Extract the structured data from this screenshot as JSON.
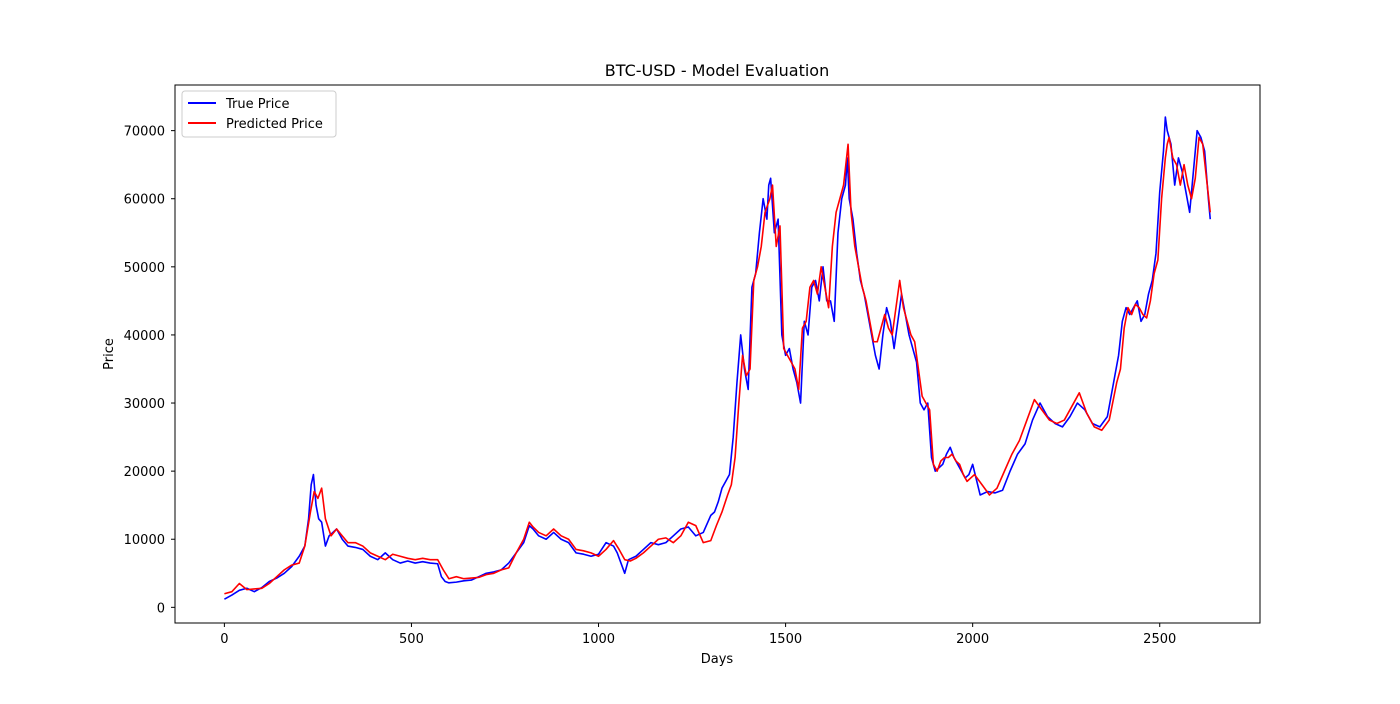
{
  "chart_data": {
    "type": "line",
    "title": "BTC-USD - Model Evaluation",
    "xlabel": "Days",
    "ylabel": "Price",
    "xlim": [
      -132,
      2768
    ],
    "ylim": [
      -2300,
      76700
    ],
    "x_ticks": [
      0,
      500,
      1000,
      1500,
      2000,
      2500
    ],
    "y_ticks": [
      0,
      10000,
      20000,
      30000,
      40000,
      50000,
      60000,
      70000
    ],
    "grid": false,
    "legend_position": "top-left",
    "series": [
      {
        "name": "True Price",
        "color": "#0000ff",
        "x": [
          0,
          20,
          40,
          60,
          80,
          100,
          120,
          140,
          160,
          180,
          200,
          215,
          225,
          232,
          238,
          245,
          252,
          260,
          270,
          280,
          290,
          300,
          315,
          330,
          350,
          370,
          390,
          410,
          430,
          450,
          470,
          490,
          510,
          530,
          550,
          570,
          580,
          590,
          600,
          620,
          640,
          660,
          680,
          700,
          720,
          740,
          760,
          780,
          800,
          815,
          825,
          840,
          860,
          880,
          900,
          920,
          940,
          960,
          980,
          1000,
          1020,
          1040,
          1050,
          1060,
          1070,
          1080,
          1100,
          1120,
          1140,
          1160,
          1180,
          1200,
          1220,
          1240,
          1260,
          1280,
          1300,
          1310,
          1320,
          1330,
          1340,
          1350,
          1360,
          1370,
          1380,
          1390,
          1400,
          1410,
          1420,
          1430,
          1440,
          1450,
          1455,
          1460,
          1470,
          1480,
          1490,
          1500,
          1510,
          1520,
          1530,
          1540,
          1550,
          1560,
          1570,
          1580,
          1590,
          1600,
          1610,
          1620,
          1630,
          1640,
          1650,
          1660,
          1665,
          1670,
          1680,
          1690,
          1700,
          1710,
          1720,
          1730,
          1740,
          1750,
          1760,
          1770,
          1780,
          1790,
          1800,
          1810,
          1820,
          1830,
          1840,
          1850,
          1860,
          1870,
          1880,
          1890,
          1900,
          1910,
          1920,
          1930,
          1940,
          1950,
          1960,
          1970,
          1980,
          1990,
          2000,
          2020,
          2040,
          2060,
          2080,
          2100,
          2120,
          2140,
          2160,
          2180,
          2200,
          2220,
          2240,
          2260,
          2280,
          2300,
          2320,
          2340,
          2360,
          2380,
          2390,
          2400,
          2410,
          2420,
          2430,
          2440,
          2450,
          2460,
          2470,
          2480,
          2490,
          2500,
          2510,
          2515,
          2520,
          2530,
          2540,
          2550,
          2560,
          2570,
          2580,
          2590,
          2600,
          2610,
          2620,
          2630,
          2635
        ],
        "values": [
          1200,
          1800,
          2500,
          2800,
          2300,
          2900,
          3800,
          4300,
          5000,
          6000,
          7500,
          9000,
          13000,
          18000,
          19500,
          15000,
          13000,
          12500,
          9000,
          10500,
          11000,
          11500,
          10000,
          9000,
          8800,
          8500,
          7500,
          7000,
          8000,
          7000,
          6500,
          6800,
          6500,
          6700,
          6500,
          6400,
          4500,
          3800,
          3600,
          3700,
          3900,
          4000,
          4500,
          5000,
          5200,
          5500,
          6500,
          8000,
          9500,
          12000,
          11500,
          10500,
          10000,
          11000,
          10000,
          9500,
          8000,
          7800,
          7500,
          7800,
          9500,
          9000,
          8000,
          6500,
          5000,
          7000,
          7500,
          8500,
          9500,
          9200,
          9500,
          10500,
          11500,
          11800,
          10500,
          11000,
          13500,
          14000,
          15500,
          17500,
          18500,
          19500,
          25000,
          33000,
          40000,
          35000,
          32000,
          47000,
          49000,
          55000,
          60000,
          57000,
          62000,
          63000,
          55000,
          57000,
          40000,
          37000,
          38000,
          35000,
          33000,
          30000,
          42000,
          40000,
          47000,
          48000,
          45000,
          50000,
          45000,
          45000,
          42000,
          55000,
          60000,
          62000,
          66000,
          60000,
          57000,
          52000,
          48000,
          46000,
          43000,
          40000,
          37000,
          35000,
          40000,
          44000,
          42000,
          38000,
          42000,
          46000,
          43000,
          40000,
          38000,
          36000,
          30000,
          29000,
          30000,
          22000,
          20000,
          20500,
          21000,
          22500,
          23500,
          22000,
          21000,
          20000,
          19000,
          19500,
          21000,
          16500,
          17000,
          16800,
          17200,
          20000,
          22500,
          24000,
          27500,
          30000,
          28000,
          27000,
          26500,
          28000,
          30000,
          29000,
          27000,
          26500,
          28000,
          34000,
          37000,
          42000,
          44000,
          43000,
          44000,
          45000,
          42000,
          43000,
          46000,
          48000,
          52000,
          61000,
          67000,
          72000,
          70000,
          68000,
          62000,
          66000,
          64000,
          61000,
          58000,
          64000,
          70000,
          69000,
          67000,
          60000,
          57000
        ]
      },
      {
        "name": "Predicted Price",
        "color": "#ff0000",
        "x": [
          0,
          20,
          40,
          60,
          80,
          100,
          120,
          140,
          160,
          180,
          200,
          215,
          230,
          240,
          250,
          260,
          270,
          285,
          300,
          315,
          330,
          350,
          370,
          390,
          410,
          430,
          450,
          470,
          490,
          510,
          530,
          550,
          570,
          585,
          600,
          620,
          640,
          660,
          680,
          700,
          720,
          740,
          760,
          780,
          800,
          815,
          825,
          840,
          860,
          880,
          900,
          920,
          940,
          960,
          980,
          1000,
          1020,
          1040,
          1055,
          1070,
          1085,
          1100,
          1120,
          1140,
          1160,
          1180,
          1200,
          1220,
          1240,
          1260,
          1280,
          1300,
          1315,
          1330,
          1345,
          1355,
          1365,
          1375,
          1385,
          1395,
          1405,
          1415,
          1425,
          1435,
          1445,
          1458,
          1465,
          1475,
          1485,
          1495,
          1505,
          1515,
          1525,
          1535,
          1545,
          1555,
          1565,
          1575,
          1585,
          1595,
          1605,
          1615,
          1625,
          1635,
          1645,
          1655,
          1667,
          1675,
          1685,
          1695,
          1705,
          1715,
          1725,
          1735,
          1745,
          1755,
          1765,
          1775,
          1785,
          1795,
          1805,
          1815,
          1825,
          1835,
          1845,
          1855,
          1865,
          1875,
          1885,
          1895,
          1905,
          1915,
          1925,
          1935,
          1945,
          1955,
          1965,
          1975,
          1985,
          1995,
          2005,
          2025,
          2045,
          2065,
          2085,
          2105,
          2125,
          2145,
          2165,
          2185,
          2205,
          2225,
          2245,
          2265,
          2285,
          2305,
          2325,
          2345,
          2365,
          2385,
          2395,
          2405,
          2415,
          2425,
          2435,
          2445,
          2455,
          2465,
          2475,
          2485,
          2495,
          2505,
          2515,
          2520,
          2525,
          2535,
          2545,
          2555,
          2565,
          2575,
          2585,
          2595,
          2605,
          2615,
          2625,
          2635
        ],
        "values": [
          2000,
          2300,
          3500,
          2600,
          2700,
          2800,
          3500,
          4500,
          5500,
          6200,
          6500,
          9000,
          14000,
          17000,
          16000,
          17500,
          13000,
          10500,
          11500,
          10500,
          9500,
          9500,
          9000,
          8000,
          7500,
          7000,
          7800,
          7500,
          7200,
          7000,
          7200,
          7000,
          7000,
          5500,
          4200,
          4500,
          4200,
          4300,
          4400,
          4800,
          5000,
          5500,
          5800,
          8000,
          10000,
          12500,
          11800,
          11000,
          10500,
          11500,
          10500,
          10000,
          8500,
          8300,
          8000,
          7500,
          8500,
          9800,
          8500,
          7000,
          6800,
          7200,
          8000,
          9000,
          10000,
          10200,
          9500,
          10500,
          12500,
          12000,
          9500,
          9800,
          12000,
          14000,
          16500,
          18000,
          22000,
          30000,
          37000,
          34000,
          35000,
          48000,
          50000,
          53000,
          58000,
          60000,
          62000,
          53000,
          56000,
          38000,
          37000,
          36000,
          35000,
          32000,
          41000,
          42000,
          47000,
          48000,
          46000,
          50000,
          47000,
          44000,
          53000,
          58000,
          60000,
          62000,
          68000,
          58000,
          53000,
          50000,
          47000,
          45000,
          42000,
          39000,
          39000,
          41000,
          43000,
          41000,
          40000,
          44000,
          48000,
          44000,
          42000,
          40000,
          39000,
          35000,
          31000,
          30000,
          29000,
          21000,
          20000,
          21500,
          22000,
          22000,
          22500,
          21500,
          21000,
          19500,
          18500,
          19000,
          19500,
          18000,
          16500,
          17500,
          20000,
          22500,
          24500,
          27500,
          30500,
          29000,
          27500,
          27000,
          27500,
          29500,
          31500,
          28500,
          26500,
          26000,
          27500,
          33000,
          35000,
          41000,
          44000,
          43000,
          44500,
          44000,
          43000,
          42500,
          45000,
          49000,
          51000,
          60000,
          66000,
          68000,
          69000,
          66000,
          65000,
          62000,
          65000,
          62000,
          60000,
          63000,
          69000,
          68000,
          63000,
          58000
        ]
      }
    ]
  }
}
